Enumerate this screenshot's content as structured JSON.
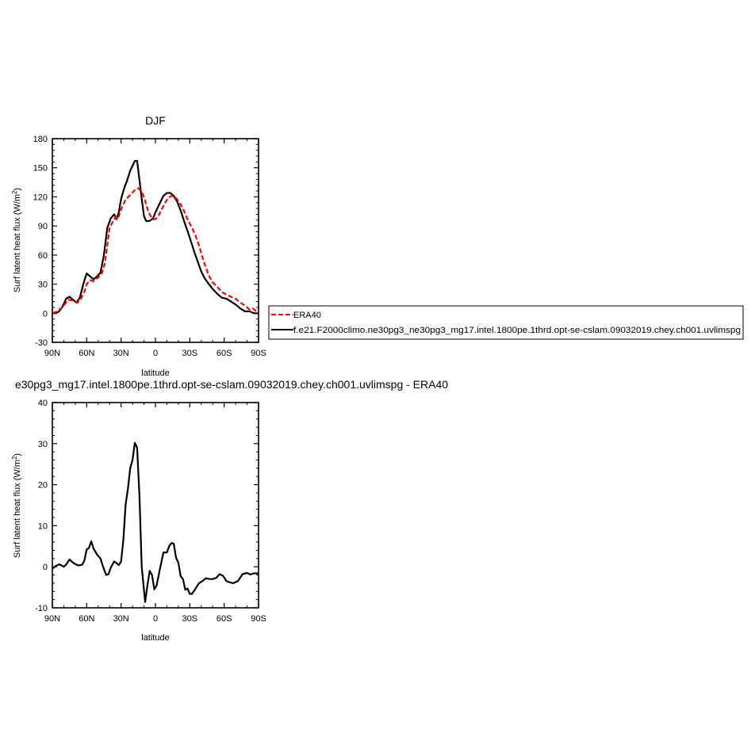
{
  "chart_data": [
    {
      "type": "line",
      "title": "DJF",
      "xlabel": "latitude",
      "ylabel": "Surf latent heat flux (W/m",
      "ylabel_sup": "2",
      "ylabel_close": ")",
      "xlim": [
        90,
        -90
      ],
      "ylim": [
        -30,
        180
      ],
      "x_ticks": [
        {
          "v": 90,
          "label": "90N"
        },
        {
          "v": 60,
          "label": "60N"
        },
        {
          "v": 30,
          "label": "30N"
        },
        {
          "v": 0,
          "label": "0"
        },
        {
          "v": -30,
          "label": "30S"
        },
        {
          "v": -60,
          "label": "60S"
        },
        {
          "v": -90,
          "label": "90S"
        }
      ],
      "y_ticks": [
        {
          "v": 180,
          "label": "180"
        },
        {
          "v": 150,
          "label": "150"
        },
        {
          "v": 120,
          "label": "120"
        },
        {
          "v": 90,
          "label": "90"
        },
        {
          "v": 60,
          "label": "60"
        },
        {
          "v": 30,
          "label": "30"
        },
        {
          "v": 0,
          "label": "0"
        },
        {
          "v": -30,
          "label": "-30"
        }
      ],
      "series": [
        {
          "name": "ERA40",
          "color": "#ff0000",
          "dash": true,
          "x": [
            90,
            85,
            80,
            76,
            72,
            68,
            65,
            62,
            60,
            57,
            54,
            50,
            47,
            44,
            40,
            37,
            35,
            33,
            31,
            29,
            26,
            22,
            18,
            15,
            12,
            10,
            8,
            6,
            4,
            2,
            0,
            -2,
            -5,
            -8,
            -11,
            -14,
            -17,
            -20,
            -24,
            -28,
            -32,
            -35,
            -38,
            -41,
            -44,
            -47,
            -50,
            -54,
            -58,
            -62,
            -66,
            -70,
            -74,
            -78,
            -82,
            -85,
            -88,
            -90
          ],
          "y": [
            0,
            2,
            8,
            14,
            13,
            11,
            15,
            22,
            30,
            34,
            33,
            37,
            40,
            52,
            88,
            95,
            99,
            97,
            103,
            110,
            117,
            122,
            127,
            129,
            125,
            120,
            112,
            104,
            100,
            97,
            97,
            99,
            106,
            113,
            119,
            121,
            120,
            116,
            108,
            97,
            88,
            80,
            70,
            58,
            47,
            38,
            32,
            27,
            22,
            19,
            17,
            15,
            11,
            8,
            4,
            5,
            2,
            1
          ]
        },
        {
          "name": "f.e21.F2000climo.ne30pg3_ne30pg3_mg17.intel.1800pe.1thrd.opt-se-cslam.09032019.chey.ch001.uvlimspg",
          "color": "#000000",
          "dash": false,
          "x": [
            90,
            87,
            84,
            81,
            78,
            75,
            72,
            69,
            66,
            63,
            60,
            57,
            54,
            51,
            48,
            45,
            42,
            39,
            36,
            34,
            32,
            30,
            27,
            25,
            22,
            20,
            18,
            16,
            14,
            12,
            10,
            8,
            6,
            4,
            2,
            0,
            -2,
            -4,
            -7,
            -10,
            -13,
            -16,
            -19,
            -22,
            -25,
            -28,
            -31,
            -34,
            -37,
            -40,
            -43,
            -46,
            -50,
            -54,
            -58,
            -62,
            -66,
            -70,
            -74,
            -78,
            -82,
            -86,
            -90
          ],
          "y": [
            0,
            0,
            2,
            7,
            15,
            17,
            14,
            11,
            16,
            30,
            41,
            38,
            35,
            38,
            42,
            60,
            88,
            98,
            102,
            97,
            104,
            118,
            130,
            136,
            147,
            152,
            157,
            157,
            138,
            118,
            100,
            95,
            95,
            96,
            98,
            104,
            109,
            114,
            121,
            124,
            124,
            121,
            115,
            106,
            95,
            85,
            74,
            63,
            53,
            43,
            36,
            31,
            25,
            20,
            16,
            15,
            12,
            9,
            5,
            2,
            2,
            0,
            0
          ]
        }
      ],
      "legend_position": "right"
    },
    {
      "type": "line",
      "title": "e30pg3_mg17.intel.1800pe.1thrd.opt-se-cslam.09032019.chey.ch001.uvlimspg - ERA40",
      "xlabel": "latitude",
      "ylabel": "Surf latent heat flux (W/m",
      "ylabel_sup": "2",
      "ylabel_close": ")",
      "xlim": [
        90,
        -90
      ],
      "ylim": [
        -10,
        40
      ],
      "x_ticks": [
        {
          "v": 90,
          "label": "90N"
        },
        {
          "v": 60,
          "label": "60N"
        },
        {
          "v": 30,
          "label": "30N"
        },
        {
          "v": 0,
          "label": "0"
        },
        {
          "v": -30,
          "label": "30S"
        },
        {
          "v": -60,
          "label": "60S"
        },
        {
          "v": -90,
          "label": "90S"
        }
      ],
      "y_ticks": [
        {
          "v": 40,
          "label": "40"
        },
        {
          "v": 30,
          "label": "30"
        },
        {
          "v": 20,
          "label": "20"
        },
        {
          "v": 10,
          "label": "10"
        },
        {
          "v": 0,
          "label": "0"
        },
        {
          "v": -10,
          "label": "-10"
        }
      ],
      "series": [
        {
          "color": "#000000",
          "dash": false,
          "x": [
            90,
            87,
            84,
            82,
            80,
            78,
            75,
            72,
            69,
            67,
            64,
            62,
            60,
            58,
            56,
            54,
            51,
            48,
            46,
            43,
            41,
            39,
            36,
            34,
            32,
            30,
            28,
            26,
            24,
            22,
            20,
            18,
            16,
            14,
            12,
            9,
            7,
            5,
            3,
            1,
            -1,
            -4,
            -7,
            -10,
            -12,
            -14,
            -16,
            -18,
            -20,
            -22,
            -24,
            -26,
            -28,
            -30,
            -32,
            -35,
            -38,
            -41,
            -44,
            -47,
            -50,
            -53,
            -56,
            -59,
            -62,
            -65,
            -68,
            -72,
            -76,
            -80,
            -83,
            -86,
            -90
          ],
          "y": [
            -0.5,
            0.2,
            0.6,
            0.3,
            0,
            0.5,
            1.8,
            1,
            0.5,
            0.3,
            0.5,
            1.5,
            4.2,
            4.6,
            6.2,
            4.4,
            3,
            2,
            0.2,
            -2,
            -1.8,
            -0.2,
            1.3,
            0.9,
            0.4,
            1.3,
            6.7,
            15.2,
            19,
            24,
            26,
            30.2,
            29,
            17.5,
            0,
            -8.6,
            -4.5,
            -1,
            -2,
            -5.5,
            -4.6,
            -0.4,
            3.5,
            3.5,
            5,
            5.8,
            5.6,
            2.2,
            1,
            -2.3,
            -3,
            -5.6,
            -5.3,
            -6.6,
            -6.6,
            -5.3,
            -4,
            -3.5,
            -2.8,
            -3,
            -3,
            -2.7,
            -1.8,
            -2.2,
            -3.5,
            -3.8,
            -4,
            -3.5,
            -1.8,
            -1.5,
            -1.9,
            -1.6,
            -1.6
          ]
        }
      ]
    }
  ]
}
